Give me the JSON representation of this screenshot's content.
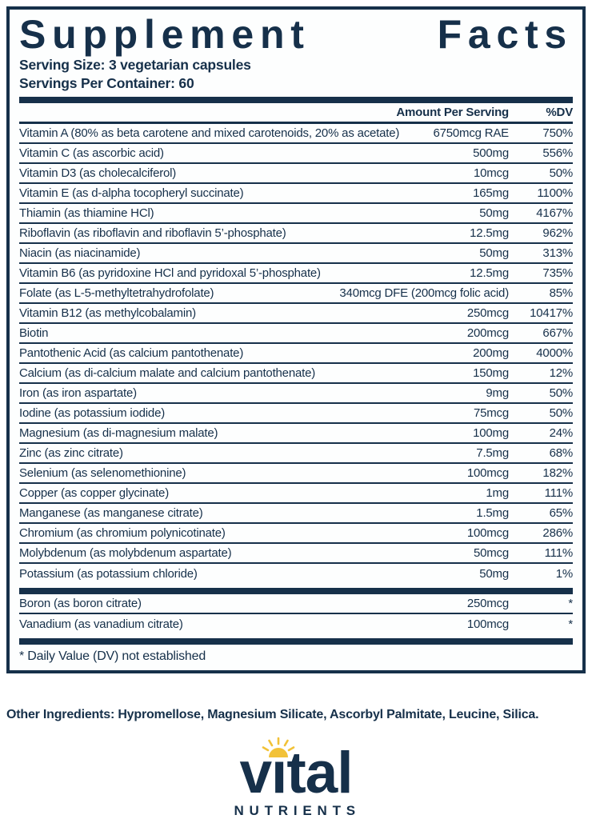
{
  "colors": {
    "navy": "#16304a",
    "gold": "#f2c238"
  },
  "panel": {
    "title": "Supplement Facts",
    "serving_size": "Serving Size: 3 vegetarian capsules",
    "servings_per_container": "Servings Per Container: 60",
    "footnote": "* Daily Value (DV) not established"
  },
  "table": {
    "headers": {
      "amount": "Amount Per Serving",
      "dv": "%DV"
    },
    "main_rows": [
      {
        "name": "Vitamin A (80% as beta carotene and mixed carotenoids, 20% as acetate)",
        "amount": "6750mcg RAE",
        "dv": "750%"
      },
      {
        "name": "Vitamin C (as ascorbic acid)",
        "amount": "500mg",
        "dv": "556%"
      },
      {
        "name": "Vitamin D3 (as cholecalciferol)",
        "amount": "10mcg",
        "dv": "50%"
      },
      {
        "name": "Vitamin E (as d-alpha tocopheryl succinate)",
        "amount": "165mg",
        "dv": "1100%"
      },
      {
        "name": "Thiamin (as thiamine HCl)",
        "amount": "50mg",
        "dv": "4167%"
      },
      {
        "name": "Riboflavin (as riboflavin and riboflavin 5’-phosphate)",
        "amount": "12.5mg",
        "dv": "962%"
      },
      {
        "name": "Niacin (as niacinamide)",
        "amount": "50mg",
        "dv": "313%"
      },
      {
        "name": "Vitamin B6 (as pyridoxine HCl and pyridoxal 5’-phosphate)",
        "amount": "12.5mg",
        "dv": "735%"
      },
      {
        "name": "Folate (as L-5-methyltetrahydrofolate)",
        "amount": "340mcg DFE (200mcg folic acid)",
        "dv": "85%"
      },
      {
        "name": "Vitamin B12 (as methylcobalamin)",
        "amount": "250mcg",
        "dv": "10417%"
      },
      {
        "name": "Biotin",
        "amount": "200mcg",
        "dv": "667%"
      },
      {
        "name": "Pantothenic Acid (as calcium pantothenate)",
        "amount": "200mg",
        "dv": "4000%"
      },
      {
        "name": "Calcium (as di-calcium malate and calcium pantothenate)",
        "amount": "150mg",
        "dv": "12%"
      },
      {
        "name": "Iron (as iron aspartate)",
        "amount": "9mg",
        "dv": "50%"
      },
      {
        "name": "Iodine (as potassium iodide)",
        "amount": "75mcg",
        "dv": "50%"
      },
      {
        "name": "Magnesium (as di-magnesium malate)",
        "amount": "100mg",
        "dv": "24%"
      },
      {
        "name": "Zinc (as zinc citrate)",
        "amount": "7.5mg",
        "dv": "68%"
      },
      {
        "name": "Selenium (as selenomethionine)",
        "amount": "100mcg",
        "dv": "182%"
      },
      {
        "name": "Copper (as copper glycinate)",
        "amount": "1mg",
        "dv": "111%"
      },
      {
        "name": "Manganese (as manganese citrate)",
        "amount": "1.5mg",
        "dv": "65%"
      },
      {
        "name": "Chromium (as chromium polynicotinate)",
        "amount": "100mcg",
        "dv": "286%"
      },
      {
        "name": "Molybdenum (as molybdenum aspartate)",
        "amount": "50mcg",
        "dv": "111%"
      },
      {
        "name": "Potassium (as potassium chloride)",
        "amount": "50mg",
        "dv": "1%"
      }
    ],
    "secondary_rows": [
      {
        "name": "Boron (as boron citrate)",
        "amount": "250mcg",
        "dv": "*"
      },
      {
        "name": "Vanadium (as vanadium citrate)",
        "amount": "100mcg",
        "dv": "*"
      }
    ]
  },
  "other_ingredients": "Other Ingredients: Hypromellose, Magnesium Silicate, Ascorbyl Palmitate, Leucine, Silica.",
  "logo": {
    "brand": "vital",
    "sub": "NUTRIENTS",
    "sun_icon": "sun-icon"
  }
}
